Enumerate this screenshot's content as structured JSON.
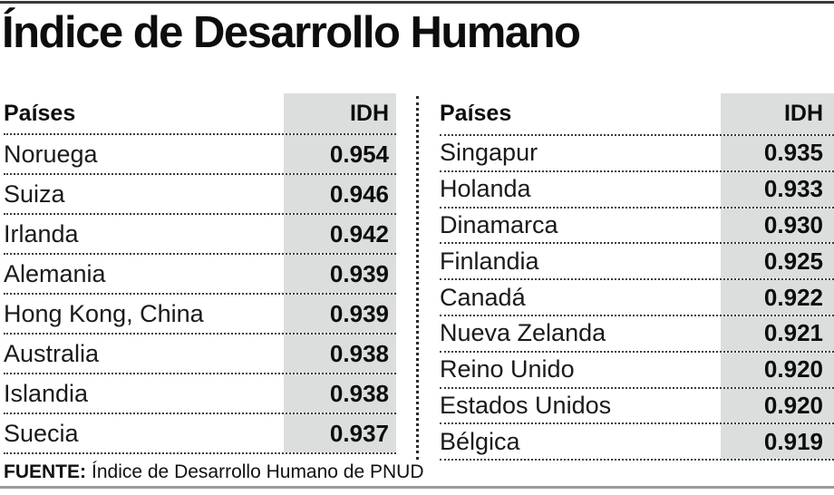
{
  "title": "Índice de Desarrollo Humano",
  "tables": [
    {
      "headers": {
        "country": "Países",
        "value": "IDH"
      },
      "rows": [
        {
          "country": "Noruega",
          "value": "0.954"
        },
        {
          "country": "Suiza",
          "value": "0.946"
        },
        {
          "country": "Irlanda",
          "value": "0.942"
        },
        {
          "country": "Alemania",
          "value": "0.939"
        },
        {
          "country": "Hong Kong, China",
          "value": "0.939"
        },
        {
          "country": "Australia",
          "value": "0.938"
        },
        {
          "country": "Islandia",
          "value": "0.938"
        },
        {
          "country": "Suecia",
          "value": "0.937"
        }
      ]
    },
    {
      "headers": {
        "country": "Países",
        "value": "IDH"
      },
      "rows": [
        {
          "country": "Singapur",
          "value": "0.935"
        },
        {
          "country": "Holanda",
          "value": "0.933"
        },
        {
          "country": "Dinamarca",
          "value": "0.930"
        },
        {
          "country": "Finlandia",
          "value": "0.925"
        },
        {
          "country": "Canadá",
          "value": "0.922"
        },
        {
          "country": "Nueva Zelanda",
          "value": "0.921"
        },
        {
          "country": "Reino Unido",
          "value": "0.920"
        },
        {
          "country": "Estados Unidos",
          "value": "0.920"
        },
        {
          "country": "Bélgica",
          "value": "0.919"
        }
      ]
    }
  ],
  "footer": {
    "label": "FUENTE:",
    "text": "Índice de Desarrollo Humano de PNUD"
  },
  "colors": {
    "idh_column_bg": "#dcdede",
    "top_rule": "#3a3a3a",
    "bottom_rule": "#9b9b9b",
    "dotted_line": "#3c3c3c",
    "text": "#161616"
  },
  "chart_data": {
    "type": "table",
    "title": "Índice de Desarrollo Humano",
    "columns": [
      "Países",
      "IDH"
    ],
    "rows": [
      [
        "Noruega",
        0.954
      ],
      [
        "Suiza",
        0.946
      ],
      [
        "Irlanda",
        0.942
      ],
      [
        "Alemania",
        0.939
      ],
      [
        "Hong Kong, China",
        0.939
      ],
      [
        "Australia",
        0.938
      ],
      [
        "Islandia",
        0.938
      ],
      [
        "Suecia",
        0.937
      ],
      [
        "Singapur",
        0.935
      ],
      [
        "Holanda",
        0.933
      ],
      [
        "Dinamarca",
        0.93
      ],
      [
        "Finlandia",
        0.925
      ],
      [
        "Canadá",
        0.922
      ],
      [
        "Nueva Zelanda",
        0.921
      ],
      [
        "Reino Unido",
        0.92
      ],
      [
        "Estados Unidos",
        0.92
      ],
      [
        "Bélgica",
        0.919
      ]
    ],
    "source": "FUENTE: Índice de Desarrollo Humano de PNUD",
    "layout": "two side-by-side ranked tables separated by a vertical dotted divider; IDH column shaded gray; dotted row separators"
  }
}
